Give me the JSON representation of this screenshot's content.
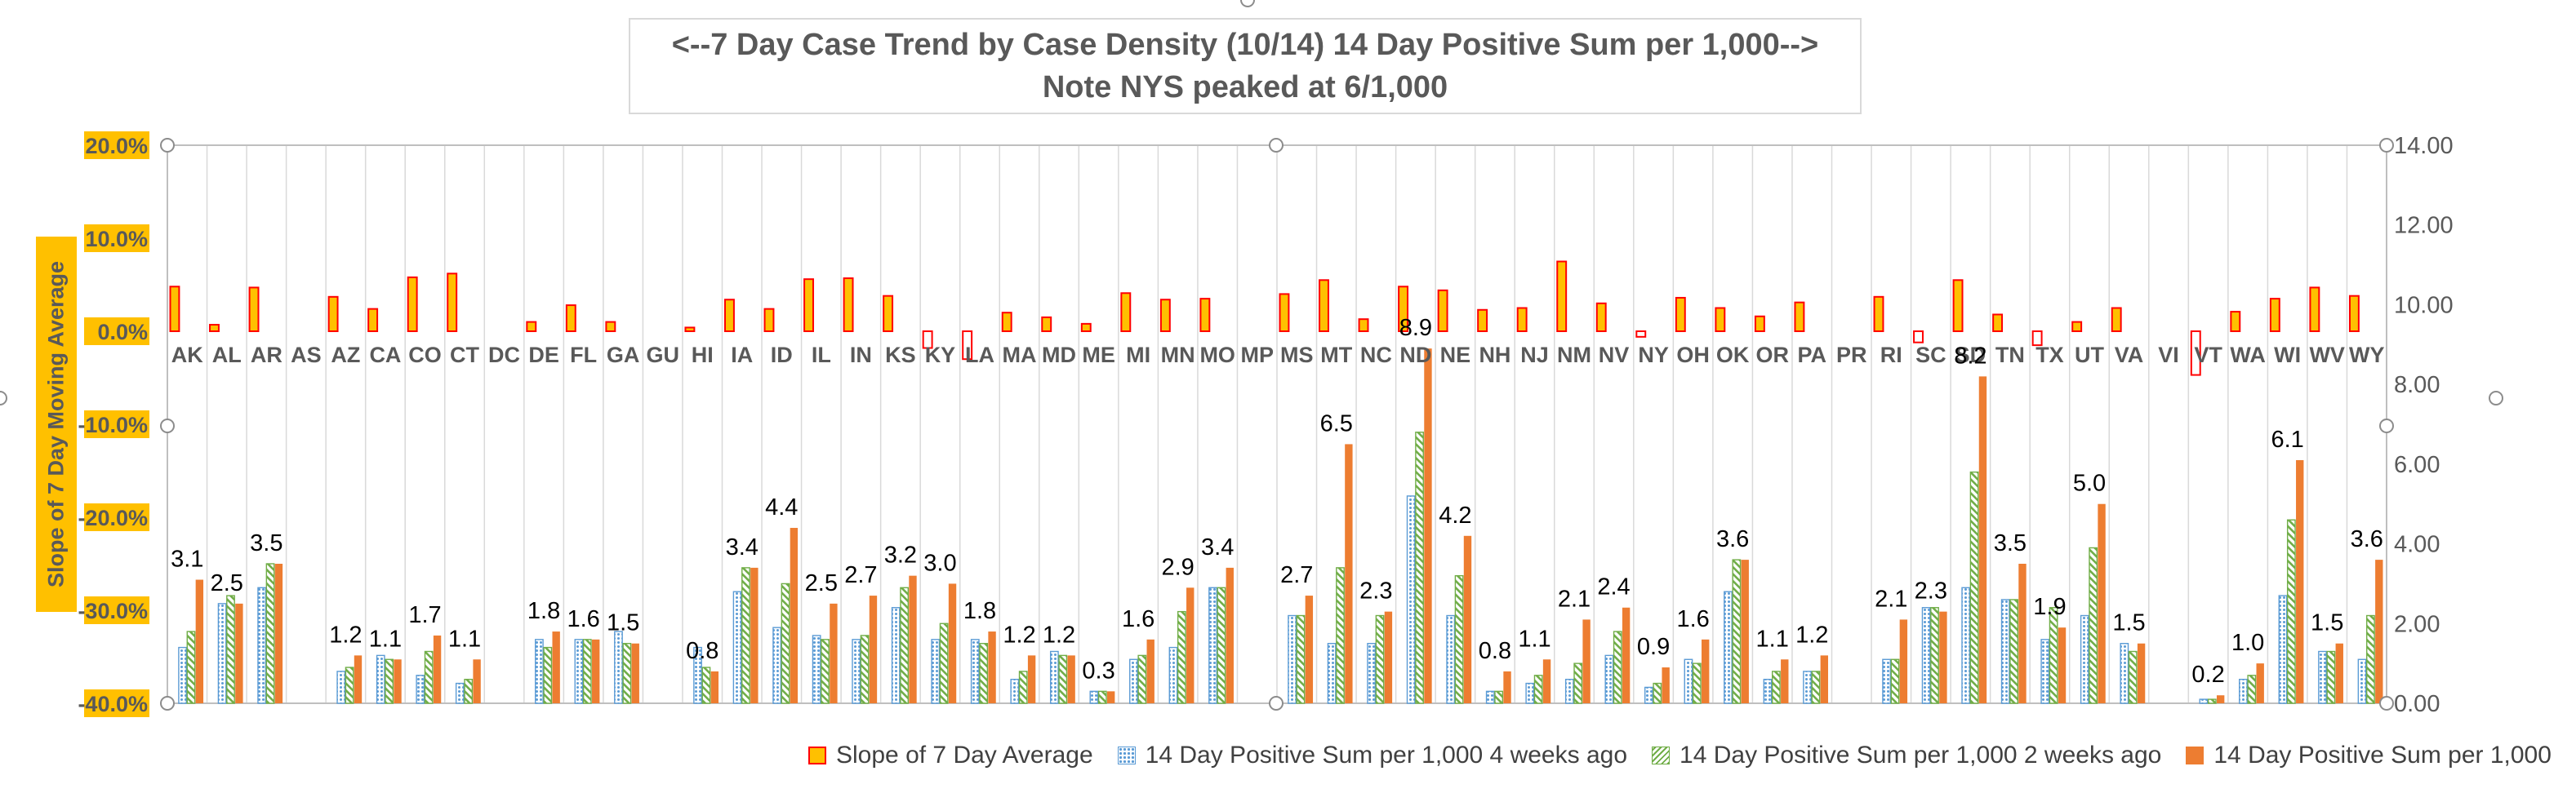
{
  "chart_data": {
    "type": "bar",
    "title": "<--7 Day Case Trend by Case Density (10/14) 14 Day Positive Sum per 1,000-->",
    "subtitle": "Note NYS peaked at 6/1,000",
    "ylabel": "Slope of 7 Day Moving Average",
    "y2label": "",
    "ylim": [
      -0.4,
      0.2
    ],
    "y2lim": [
      0,
      14
    ],
    "y_ticks": [
      "20.0%",
      "10.0%",
      "0.0%",
      "-10.0%",
      "-20.0%",
      "-30.0%",
      "-40.0%"
    ],
    "y2_ticks": [
      "0.00",
      "2.00",
      "4.00",
      "6.00",
      "8.00",
      "10.00",
      "12.00",
      "14.00"
    ],
    "categories": [
      "AK",
      "AL",
      "AR",
      "AS",
      "AZ",
      "CA",
      "CO",
      "CT",
      "DC",
      "DE",
      "FL",
      "GA",
      "GU",
      "HI",
      "IA",
      "ID",
      "IL",
      "IN",
      "KS",
      "KY",
      "LA",
      "MA",
      "MD",
      "ME",
      "MI",
      "MN",
      "MO",
      "MP",
      "MS",
      "MT",
      "NC",
      "ND",
      "NE",
      "NH",
      "NJ",
      "NM",
      "NV",
      "NY",
      "OH",
      "OK",
      "OR",
      "PA",
      "PR",
      "RI",
      "SC",
      "SD",
      "TN",
      "TX",
      "UT",
      "VA",
      "VI",
      "VT",
      "WA",
      "WI",
      "WV",
      "WY"
    ],
    "series": [
      {
        "name": "Slope of 7 Day Average",
        "axis": "left",
        "values": [
          0.048,
          0.007,
          0.047,
          null,
          0.037,
          0.024,
          0.058,
          0.062,
          null,
          0.01,
          0.028,
          0.01,
          null,
          0.004,
          0.034,
          0.024,
          0.056,
          0.057,
          0.038,
          -0.018,
          -0.03,
          0.02,
          0.015,
          0.008,
          0.041,
          0.034,
          0.035,
          null,
          0.04,
          0.055,
          0.013,
          0.048,
          0.044,
          0.023,
          0.025,
          0.075,
          0.03,
          -0.006,
          0.036,
          0.025,
          0.016,
          0.031,
          null,
          0.037,
          -0.012,
          0.055,
          0.018,
          -0.015,
          0.01,
          0.025,
          null,
          -0.047,
          0.021,
          0.035,
          0.047,
          0.038
        ]
      },
      {
        "name": "14 Day Positive Sum per 1,000 4 weeks ago",
        "axis": "right",
        "values": [
          1.4,
          2.5,
          2.9,
          null,
          0.8,
          1.2,
          0.7,
          0.5,
          null,
          1.6,
          1.6,
          1.8,
          null,
          1.4,
          2.8,
          1.9,
          1.7,
          1.6,
          2.4,
          1.6,
          1.6,
          0.6,
          1.3,
          0.3,
          1.1,
          1.4,
          2.9,
          null,
          2.2,
          1.5,
          1.5,
          5.2,
          2.2,
          0.3,
          0.5,
          0.6,
          1.2,
          0.4,
          1.1,
          2.8,
          0.6,
          0.8,
          null,
          1.1,
          2.4,
          2.9,
          2.6,
          1.6,
          2.2,
          1.5,
          null,
          0.1,
          0.6,
          2.7,
          1.3,
          1.1
        ]
      },
      {
        "name": "14 Day Positive Sum per 1,000 2 weeks ago",
        "axis": "right",
        "values": [
          1.8,
          2.7,
          3.5,
          null,
          0.9,
          1.1,
          1.3,
          0.6,
          null,
          1.4,
          1.6,
          1.5,
          null,
          0.9,
          3.4,
          3.0,
          1.6,
          1.7,
          2.9,
          2.0,
          1.5,
          0.8,
          1.2,
          0.3,
          1.2,
          2.3,
          2.9,
          null,
          2.2,
          3.4,
          2.2,
          6.8,
          3.2,
          0.3,
          0.7,
          1.0,
          1.8,
          0.5,
          1.0,
          3.6,
          0.8,
          0.8,
          null,
          1.1,
          2.4,
          5.8,
          2.6,
          2.4,
          3.9,
          1.3,
          null,
          0.1,
          0.7,
          4.6,
          1.3,
          2.2
        ]
      },
      {
        "name": "14 Day Positive Sum per 1,000",
        "axis": "right",
        "values": [
          3.1,
          2.5,
          3.5,
          null,
          1.2,
          1.1,
          1.7,
          1.1,
          null,
          1.8,
          1.6,
          1.5,
          null,
          0.8,
          3.4,
          4.4,
          2.5,
          2.7,
          3.2,
          3.0,
          1.8,
          1.2,
          1.2,
          0.3,
          1.6,
          2.9,
          3.4,
          null,
          2.7,
          6.5,
          2.3,
          8.9,
          4.2,
          0.8,
          1.1,
          2.1,
          2.4,
          0.9,
          1.6,
          3.6,
          1.1,
          1.2,
          null,
          2.1,
          2.3,
          8.2,
          3.5,
          1.9,
          5.0,
          1.5,
          null,
          0.2,
          1.0,
          6.1,
          1.5,
          3.6
        ]
      }
    ],
    "data_labels": [
      {
        "state": "AK",
        "text": "3.1"
      },
      {
        "state": "AL",
        "text": "2.5"
      },
      {
        "state": "AR",
        "text": "3.5"
      },
      {
        "state": "AZ",
        "text": "1.2"
      },
      {
        "state": "CA",
        "text": "1.1"
      },
      {
        "state": "CO",
        "text": "1.7"
      },
      {
        "state": "CT",
        "text": "1.1"
      },
      {
        "state": "DE",
        "text": "1.8"
      },
      {
        "state": "FL",
        "text": "1.6"
      },
      {
        "state": "GA",
        "text": "1.5"
      },
      {
        "state": "HI",
        "text": "0.8"
      },
      {
        "state": "IA",
        "text": "3.4"
      },
      {
        "state": "ID",
        "text": "4.4"
      },
      {
        "state": "IL",
        "text": "2.5"
      },
      {
        "state": "IN",
        "text": "2.7"
      },
      {
        "state": "KS",
        "text": "3.2"
      },
      {
        "state": "KY",
        "text": "3.0"
      },
      {
        "state": "LA",
        "text": "1.8"
      },
      {
        "state": "MA",
        "text": "1.2"
      },
      {
        "state": "MD",
        "text": "1.2"
      },
      {
        "state": "ME",
        "text": "0.3"
      },
      {
        "state": "MI",
        "text": "1.6"
      },
      {
        "state": "MN",
        "text": "2.9"
      },
      {
        "state": "MO",
        "text": "3.4"
      },
      {
        "state": "MS",
        "text": "2.7"
      },
      {
        "state": "MT",
        "text": "6.5"
      },
      {
        "state": "NC",
        "text": "2.3"
      },
      {
        "state": "ND",
        "text": "8.9"
      },
      {
        "state": "NE",
        "text": "4.2"
      },
      {
        "state": "NH",
        "text": "0.8"
      },
      {
        "state": "NJ",
        "text": "1.1"
      },
      {
        "state": "NM",
        "text": "2.1"
      },
      {
        "state": "NV",
        "text": "2.4"
      },
      {
        "state": "NY",
        "text": "0.9"
      },
      {
        "state": "OH",
        "text": "1.6"
      },
      {
        "state": "OK",
        "text": "3.6"
      },
      {
        "state": "OR",
        "text": "1.1"
      },
      {
        "state": "PA",
        "text": "1.2"
      },
      {
        "state": "RI",
        "text": "2.1"
      },
      {
        "state": "SC",
        "text": "2.3"
      },
      {
        "state": "SD",
        "text": "8.2"
      },
      {
        "state": "TN",
        "text": "3.5"
      },
      {
        "state": "TX",
        "text": "1.9"
      },
      {
        "state": "UT",
        "text": "5.0"
      },
      {
        "state": "VA",
        "text": "1.5"
      },
      {
        "state": "VT",
        "text": "0.2"
      },
      {
        "state": "WA",
        "text": "1.0"
      },
      {
        "state": "WI",
        "text": "6.1"
      },
      {
        "state": "WV",
        "text": "1.5"
      },
      {
        "state": "WY",
        "text": "3.6"
      }
    ],
    "legend_position": "bottom-right",
    "grid": "vertical category gridlines",
    "colors": {
      "slope_fill": "#ffc000",
      "slope_border": "#ff0000",
      "weeks4": "#5b9bd5",
      "weeks2": "#70ad47",
      "current": "#ed7d31",
      "axis_label_bg": "#ffc000",
      "text": "#595959",
      "gridline": "#d9d9d9"
    }
  }
}
